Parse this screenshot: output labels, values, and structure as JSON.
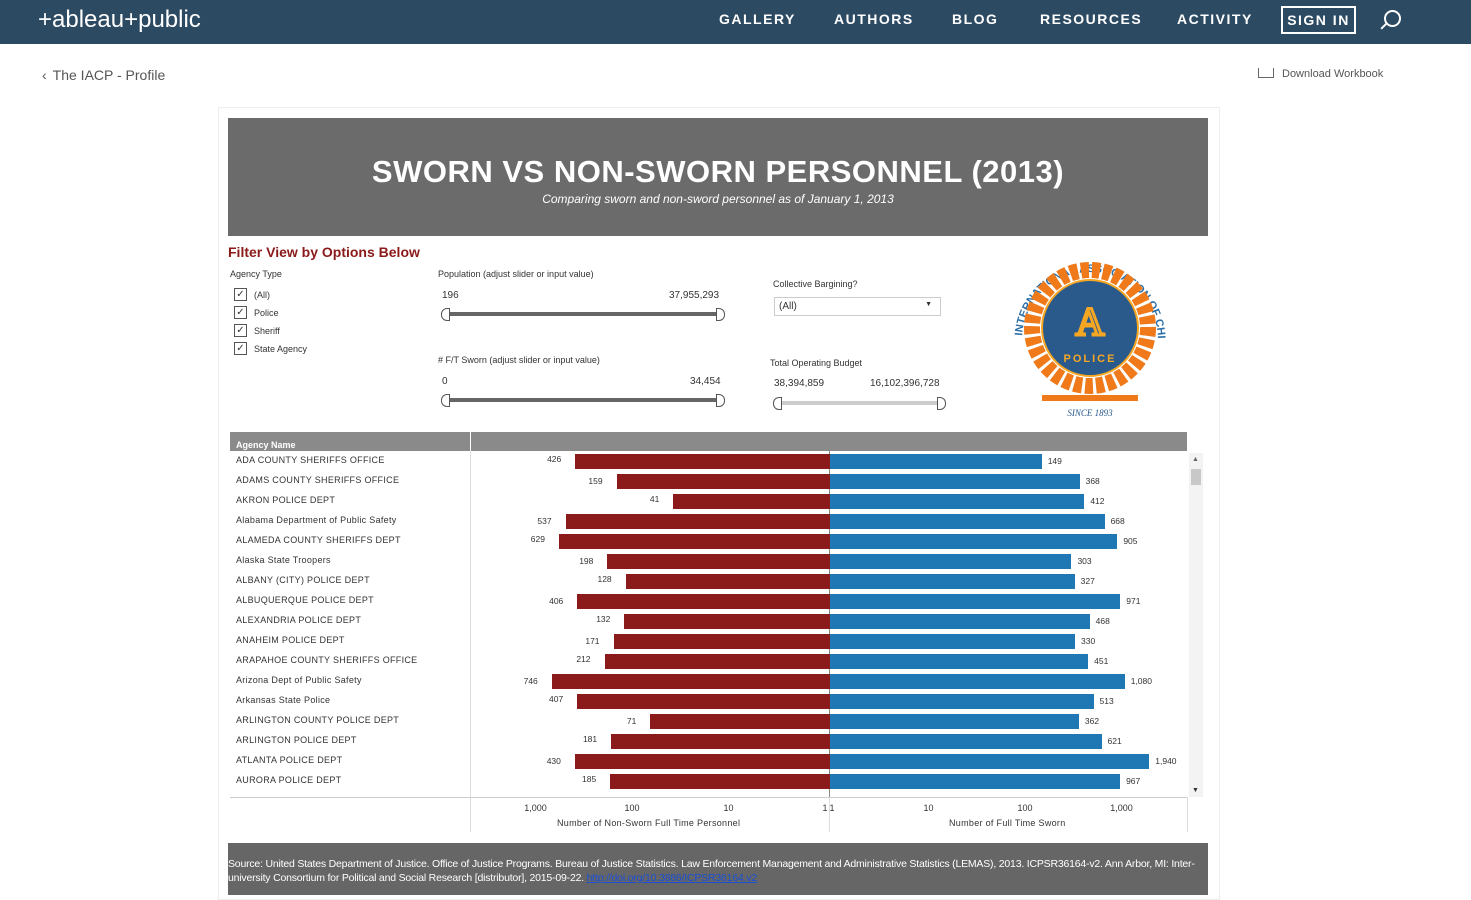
{
  "header": {
    "logo": "+ableau+public",
    "nav": [
      "GALLERY",
      "AUTHORS",
      "BLOG",
      "RESOURCES",
      "ACTIVITY"
    ],
    "sign_in": "SIGN IN"
  },
  "back_link": "The IACP - Profile",
  "download": "Download Workbook",
  "banner": {
    "title": "SWORN VS NON-SWORN PERSONNEL (2013)",
    "subtitle": "Comparing sworn and non-sword personnel as of January 1, 2013"
  },
  "filters": {
    "heading": "Filter View by Options Below",
    "agency_type_label": "Agency Type",
    "agency_types": [
      {
        "label": "(All)",
        "checked": true
      },
      {
        "label": "Police",
        "checked": true
      },
      {
        "label": "Sheriff",
        "checked": true
      },
      {
        "label": "State Agency",
        "checked": true
      }
    ],
    "population": {
      "label": "Population (adjust slider or input value)",
      "min": "196",
      "max": "37,955,293"
    },
    "sworn": {
      "label": "# F/T Sworn (adjust slider or input value)",
      "min": "0",
      "max": "34,454"
    },
    "bargaining": {
      "label": "Collective Bargining?",
      "value": "(All)"
    },
    "budget": {
      "label": "Total Operating Budget",
      "min": "38,394,859",
      "max": "16,102,396,728"
    }
  },
  "logo": {
    "text": "INTERNATIONAL ASSOCIATION OF CHIEFS OF POLICE",
    "badge": "POLICE",
    "since": "SINCE 1893"
  },
  "chart_data": {
    "type": "bar",
    "scale": "log",
    "column_header": "Agency Name",
    "left_axis": {
      "label": "Number of Non-Sworn Full Time Personnel",
      "ticks": [
        "1,000",
        "100",
        "10",
        "1"
      ]
    },
    "right_axis": {
      "label": "Number of Full Time Sworn",
      "ticks": [
        "1",
        "10",
        "100",
        "1,000"
      ]
    },
    "colors": {
      "non_sworn": "#8b1a1a",
      "sworn": "#1f77b4"
    },
    "rows": [
      {
        "name": "ADA COUNTY SHERIFFS OFFICE",
        "non_sworn": 426,
        "non_sworn_label": "426",
        "sworn": 149,
        "sworn_label": "149"
      },
      {
        "name": "ADAMS COUNTY SHERIFFS OFFICE",
        "non_sworn": 159,
        "non_sworn_label": "159",
        "sworn": 368,
        "sworn_label": "368"
      },
      {
        "name": "AKRON POLICE DEPT",
        "non_sworn": 41,
        "non_sworn_label": "41",
        "sworn": 412,
        "sworn_label": "412"
      },
      {
        "name": "Alabama Department of Public Safety",
        "non_sworn": 537,
        "non_sworn_label": "537",
        "sworn": 668,
        "sworn_label": "668"
      },
      {
        "name": "ALAMEDA COUNTY SHERIFFS DEPT",
        "non_sworn": 629,
        "non_sworn_label": "629",
        "sworn": 905,
        "sworn_label": "905"
      },
      {
        "name": "Alaska State Troopers",
        "non_sworn": 198,
        "non_sworn_label": "198",
        "sworn": 303,
        "sworn_label": "303"
      },
      {
        "name": "ALBANY (CITY) POLICE DEPT",
        "non_sworn": 128,
        "non_sworn_label": "128",
        "sworn": 327,
        "sworn_label": "327"
      },
      {
        "name": "ALBUQUERQUE POLICE DEPT",
        "non_sworn": 406,
        "non_sworn_label": "406",
        "sworn": 971,
        "sworn_label": "971"
      },
      {
        "name": "ALEXANDRIA POLICE DEPT",
        "non_sworn": 132,
        "non_sworn_label": "132",
        "sworn": 468,
        "sworn_label": "468"
      },
      {
        "name": "ANAHEIM POLICE DEPT",
        "non_sworn": 171,
        "non_sworn_label": "171",
        "sworn": 330,
        "sworn_label": "330"
      },
      {
        "name": "ARAPAHOE COUNTY SHERIFFS OFFICE",
        "non_sworn": 212,
        "non_sworn_label": "212",
        "sworn": 451,
        "sworn_label": "451"
      },
      {
        "name": "Arizona Dept of Public Safety",
        "non_sworn": 746,
        "non_sworn_label": "746",
        "sworn": 1080,
        "sworn_label": "1,080"
      },
      {
        "name": "Arkansas State Police",
        "non_sworn": 407,
        "non_sworn_label": "407",
        "sworn": 513,
        "sworn_label": "513"
      },
      {
        "name": "ARLINGTON COUNTY POLICE DEPT",
        "non_sworn": 71,
        "non_sworn_label": "71",
        "sworn": 362,
        "sworn_label": "362"
      },
      {
        "name": "ARLINGTON POLICE DEPT",
        "non_sworn": 181,
        "non_sworn_label": "181",
        "sworn": 621,
        "sworn_label": "621"
      },
      {
        "name": "ATLANTA POLICE DEPT",
        "non_sworn": 430,
        "non_sworn_label": "430",
        "sworn": 1940,
        "sworn_label": "1,940"
      },
      {
        "name": "AURORA POLICE DEPT",
        "non_sworn": 185,
        "non_sworn_label": "185",
        "sworn": 967,
        "sworn_label": "967"
      }
    ]
  },
  "source": {
    "text": "Source: United States Department of Justice. Office of Justice Programs. Bureau of Justice Statistics. Law Enforcement Management and Administrative Statistics (LEMAS), 2013. ICPSR36164-v2. Ann Arbor, MI: Inter-university Consortium for Political and Social Research [distributor], 2015-09-22. ",
    "link": "http://doi.org/10.3886/ICPSR36164.v2"
  }
}
